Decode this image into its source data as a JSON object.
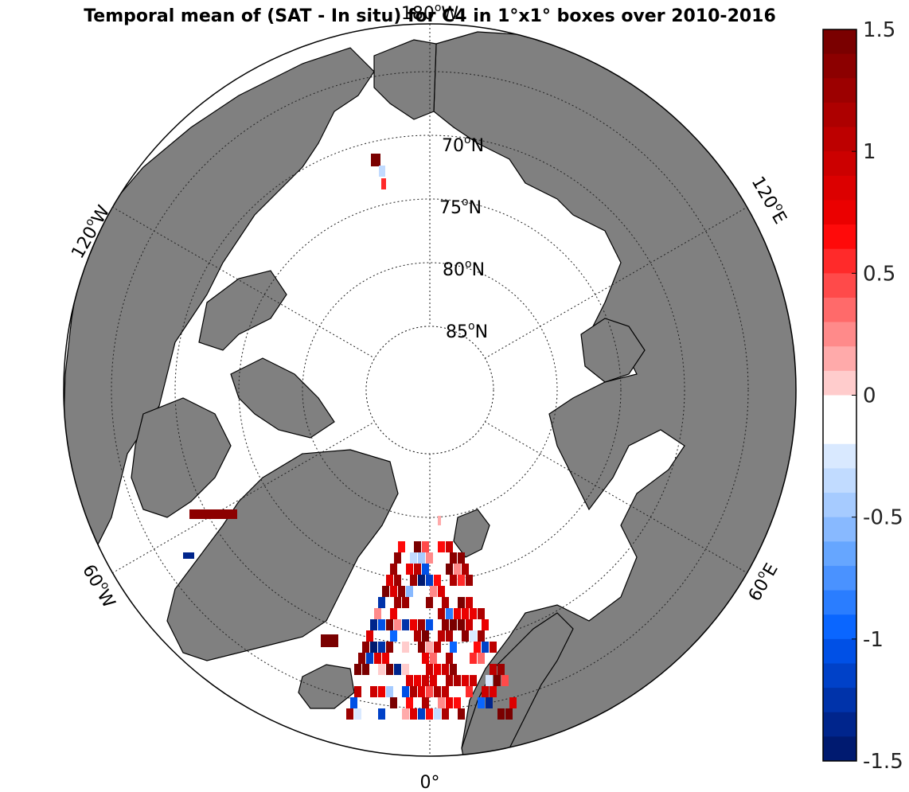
{
  "title": "Temporal mean of (SAT - In situ) for C4 in 1°x1° boxes over 2010-2016",
  "latitude_labels": [
    {
      "lat": 70,
      "text": "70",
      "suffix": "N"
    },
    {
      "lat": 75,
      "text": "75",
      "suffix": "N"
    },
    {
      "lat": 80,
      "text": "80",
      "suffix": "N"
    },
    {
      "lat": 85,
      "text": "85",
      "suffix": "N"
    }
  ],
  "longitude_labels": {
    "top": {
      "text": "180",
      "suffix": "W"
    },
    "bottom": {
      "text": "0°"
    },
    "lon120w": {
      "text": "120",
      "suffix": "W"
    },
    "lon60w": {
      "text": "60",
      "suffix": "W"
    },
    "lon120e": {
      "text": "120",
      "suffix": "E"
    },
    "lon60e": {
      "text": "60",
      "suffix": "E"
    }
  },
  "colorbar": {
    "min": -1.5,
    "max": 1.5,
    "levels": 30,
    "ticks": [
      "1.5",
      "1",
      "0.5",
      "0",
      "-0.5",
      "-1",
      "-1.5"
    ],
    "colors_top_to_bottom": [
      "#7a0000",
      "#8c0000",
      "#9c0000",
      "#ad0000",
      "#bd0000",
      "#cc0000",
      "#dc0000",
      "#eb0000",
      "#ff0a0a",
      "#ff2a2a",
      "#ff4a4a",
      "#ff6a6a",
      "#ff8a8a",
      "#ffaaaa",
      "#ffcccc",
      "#ffffff",
      "#ffffff",
      "#d9e9ff",
      "#c1dbff",
      "#a6cbff",
      "#88b9ff",
      "#66a6ff",
      "#4a92ff",
      "#2a7dff",
      "#0a66ff",
      "#0050e6",
      "#0041c8",
      "#0033aa",
      "#00258c",
      "#001a70"
    ]
  }
}
